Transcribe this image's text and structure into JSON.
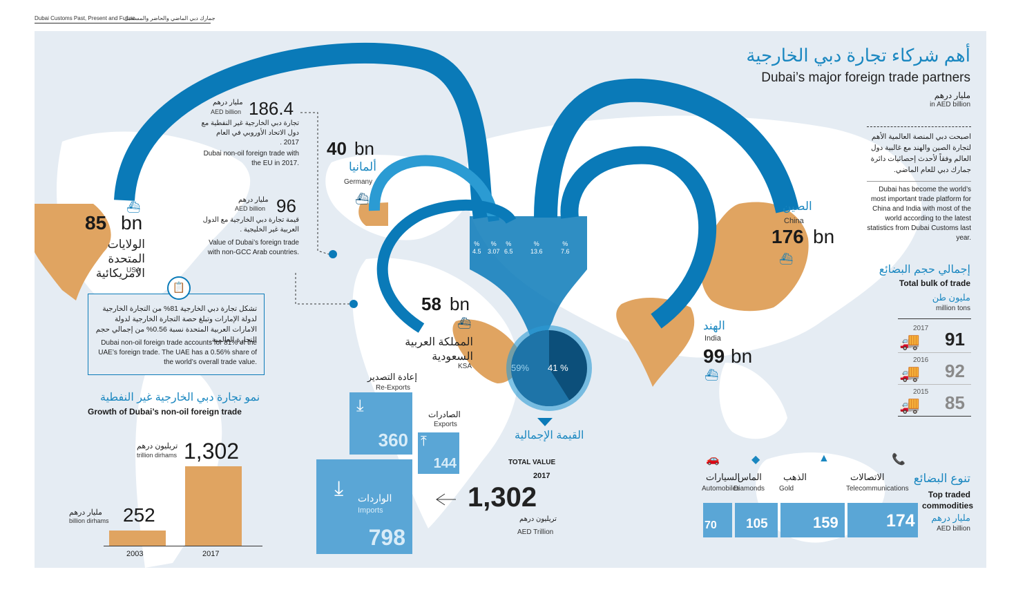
{
  "header": {
    "text_en": "Dubai Customs Past, Present and Future",
    "text_ar": "جمارك دبي الماضي والحاضر والمستقبل"
  },
  "title": {
    "ar": "أهم شركاء تجارة دبي الخارجية",
    "en": "Dubai’s major foreign trade partners",
    "unit_ar": "مليار درهم",
    "unit_en": "in AED billion"
  },
  "intro": {
    "ar": "اصبحت دبي المنصة العالمية الأهم لتجارة الصين والهند مع غالبية دول العالم وفقاً لأحدث إحصائيات دائرة جمارك دبي للعام الماضي.",
    "en": "Dubai has become the world’s most important trade platform for China and India with most of the world according to the latest statistics from Dubai Customs last year."
  },
  "eu": {
    "value": "186.4",
    "unit_ar": "مليار درهم",
    "unit_en": "AED billion",
    "desc_ar": "تجارة دبي الخارجية غير النفطية مع دول الاتحاد الأوروبي في العام 2017 .",
    "desc_en": "Dubai non-oil foreign trade with the EU in 2017."
  },
  "gcc": {
    "value": "96",
    "unit_ar": "مليار درهم",
    "unit_en": "AED billion",
    "desc_ar": "قيمة تجارة دبي الخارجية مع الدول العربية غير الخليجية .",
    "desc_en": "Value of Dubai’s foreign trade with non-GCC Arab countries."
  },
  "partners": {
    "usa": {
      "value": "85",
      "unit": "bn",
      "ar": "الولايات المتحدة الامريكائية",
      "en": "USA"
    },
    "germany": {
      "value": "40",
      "unit": "bn",
      "ar": "ألمانيا",
      "en": "Germany"
    },
    "ksa": {
      "value": "58",
      "unit": "bn",
      "ar": "المملكة العربية السعودية",
      "en": "KSA"
    },
    "china": {
      "value": "176",
      "unit": "bn",
      "ar": "الصين",
      "en": "China"
    },
    "india": {
      "value": "99",
      "unit": "bn",
      "ar": "الهند",
      "en": "India"
    }
  },
  "percent_labels": [
    {
      "sym": "%",
      "val": "4.5"
    },
    {
      "sym": "%",
      "val": "3.07"
    },
    {
      "sym": "%",
      "val": "6.5"
    },
    {
      "sym": "%",
      "val": "13.6"
    },
    {
      "sym": "%",
      "val": "7.6"
    }
  ],
  "share_box": {
    "ar": "تشكل تجارة دبي الخارجية 81% من التجارة الخارجية لدولة الإمارات وتبلغ حصة التجارة الخارجية لدولة الامارات العربية المتحدة نسبة 0.56% من إجمالي حجم التجارة العالمية.",
    "en": "Dubai non-oil foreign trade accounts for 81% of the UAE’s foreign trade. The UAE has a 0.56% share of the world’s overall trade value."
  },
  "growth": {
    "title_ar": "نمو تجارة دبي الخارجية غير النفطية",
    "title_en": "Growth of Dubai’s non-oil foreign trade",
    "bars": [
      {
        "year": "2003",
        "value": "252",
        "unit_ar": "مليار درهم",
        "unit_en": "billion dirhams",
        "num": 252
      },
      {
        "year": "2017",
        "value": "1,302",
        "unit_ar": "تريليون درهم",
        "unit_en": "trillion dirhams",
        "num": 1302
      }
    ]
  },
  "pie": {
    "left": "59%",
    "right": "41 %",
    "share": 0.59
  },
  "total": {
    "ar": "القيمة الإجمالية",
    "en": "TOTAL VALUE",
    "year": "2017",
    "value": "1,302",
    "unit_ar": "تريليون درهم",
    "unit_en": "AED Trillion"
  },
  "flows": {
    "reexports": {
      "ar": "إعادة التصدير",
      "en": "Re-Exports",
      "value": "360"
    },
    "exports": {
      "ar": "الصادرات",
      "en": "Exports",
      "value": "144"
    },
    "imports": {
      "ar": "الواردات",
      "en": "Imports",
      "value": "798"
    }
  },
  "bulk": {
    "title_ar": "إجمالي حجم البضائع",
    "title_en": "Total bulk of trade",
    "unit_ar": "مليون طن",
    "unit_en": "million tons",
    "rows": [
      {
        "year": "2017",
        "value": "91"
      },
      {
        "year": "2016",
        "value": "92"
      },
      {
        "year": "2015",
        "value": "85"
      }
    ]
  },
  "commodities": {
    "title_ar": "تنوع البضائع",
    "title_en": "Top traded commodities",
    "unit_ar": "مليار درهم",
    "unit_en": "AED billion",
    "items": [
      {
        "ar": "السيارات",
        "en": "Automobiles",
        "value": "70",
        "icon": "car-icon"
      },
      {
        "ar": "الماس",
        "en": "Diamonds",
        "value": "105",
        "icon": "diamond-icon"
      },
      {
        "ar": "الذهب",
        "en": "Gold",
        "value": "159",
        "icon": "gold-icon"
      },
      {
        "ar": "الاتصالات",
        "en": "Telecommunications",
        "value": "174",
        "icon": "phone-icon"
      }
    ]
  },
  "colors": {
    "bg": "#e5ecf3",
    "land": "#ffffff",
    "partner": "#e0a461",
    "arc": "#0a7ab8",
    "arcLight": "#2b9bd3",
    "grey": "#8a8a8a",
    "title": "#1a87c0"
  }
}
